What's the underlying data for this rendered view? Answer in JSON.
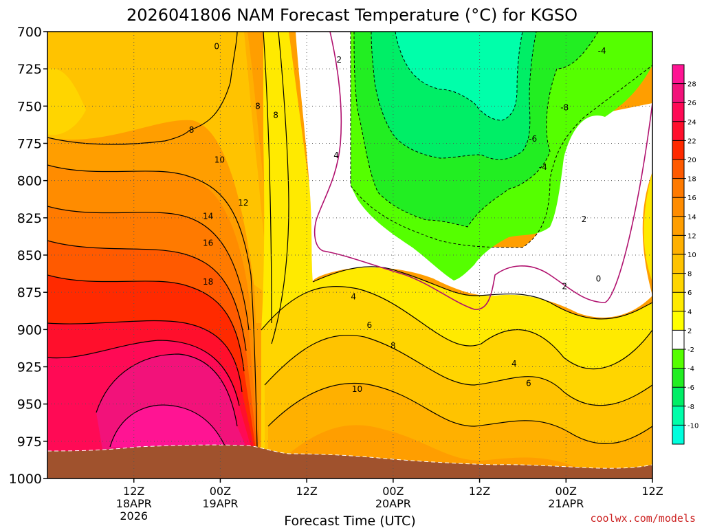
{
  "title": "2026041806 NAM Forecast Temperature (°C) for KGSO",
  "credit": "coolwx.com/models",
  "chart_data": {
    "type": "heatmap",
    "title": "2026041806 NAM Forecast Temperature (°C) for KGSO",
    "xlabel": "Forecast Time (UTC)",
    "ylabel": "",
    "y_axis": {
      "ticks": [
        700,
        725,
        750,
        775,
        800,
        825,
        850,
        875,
        900,
        925,
        950,
        975,
        1000
      ],
      "range": [
        700,
        1000
      ],
      "inverted": true
    },
    "x_axis": {
      "range_hours": [
        -12,
        72
      ],
      "ticks": [
        {
          "hour": 0,
          "lines": [
            "12Z",
            "18APR",
            "2026"
          ]
        },
        {
          "hour": 12,
          "lines": [
            "00Z",
            "19APR"
          ]
        },
        {
          "hour": 24,
          "lines": [
            "12Z"
          ]
        },
        {
          "hour": 36,
          "lines": [
            "00Z",
            "20APR"
          ]
        },
        {
          "hour": 48,
          "lines": [
            "12Z"
          ]
        },
        {
          "hour": 60,
          "lines": [
            "00Z",
            "21APR"
          ]
        },
        {
          "hour": 72,
          "lines": [
            "12Z"
          ]
        }
      ]
    },
    "grid": true,
    "colorbar": {
      "levels": [
        28,
        26,
        24,
        22,
        20,
        18,
        16,
        14,
        12,
        10,
        8,
        6,
        4,
        2,
        -2,
        -4,
        -6,
        -8,
        -10
      ],
      "colors": [
        "#ff1493",
        "#f2127a",
        "#ff0a55",
        "#ff0f2c",
        "#ff2a00",
        "#ff5a00",
        "#ff7a00",
        "#ff8c00",
        "#ff9e00",
        "#ffb000",
        "#ffc300",
        "#ffd500",
        "#ffea00",
        "#ffff00",
        "#ffffff",
        "#55ff00",
        "#22ee22",
        "#00ee66",
        "#00ffaa",
        "#00ffdd"
      ]
    },
    "contour_labels": [
      {
        "text": "0",
        "h": 11.5,
        "p": 710
      },
      {
        "text": "2",
        "h": 28.5,
        "p": 719
      },
      {
        "text": "-4",
        "h": 65,
        "p": 713
      },
      {
        "text": "8",
        "h": 17.2,
        "p": 750
      },
      {
        "text": "8",
        "h": 19.7,
        "p": 756
      },
      {
        "text": "-8",
        "h": 59.8,
        "p": 751
      },
      {
        "text": "8",
        "h": 8,
        "p": 766
      },
      {
        "text": "-6",
        "h": 55.4,
        "p": 772
      },
      {
        "text": "4",
        "h": 28.1,
        "p": 783
      },
      {
        "text": "10",
        "h": 11.9,
        "p": 786
      },
      {
        "text": "-4",
        "h": 56.8,
        "p": 791
      },
      {
        "text": "12",
        "h": 15.2,
        "p": 815
      },
      {
        "text": "14",
        "h": 10.3,
        "p": 824
      },
      {
        "text": "2",
        "h": 62.5,
        "p": 826
      },
      {
        "text": "16",
        "h": 10.3,
        "p": 842
      },
      {
        "text": "0",
        "h": 64.5,
        "p": 866
      },
      {
        "text": "18",
        "h": 10.3,
        "p": 868
      },
      {
        "text": "2",
        "h": 59.8,
        "p": 871
      },
      {
        "text": "4",
        "h": 30.5,
        "p": 878
      },
      {
        "text": "6",
        "h": 32.7,
        "p": 897
      },
      {
        "text": "8",
        "h": 36,
        "p": 911
      },
      {
        "text": "4",
        "h": 52.8,
        "p": 923
      },
      {
        "text": "10",
        "h": 31,
        "p": 940
      },
      {
        "text": "6",
        "h": 54.8,
        "p": 936
      }
    ]
  }
}
